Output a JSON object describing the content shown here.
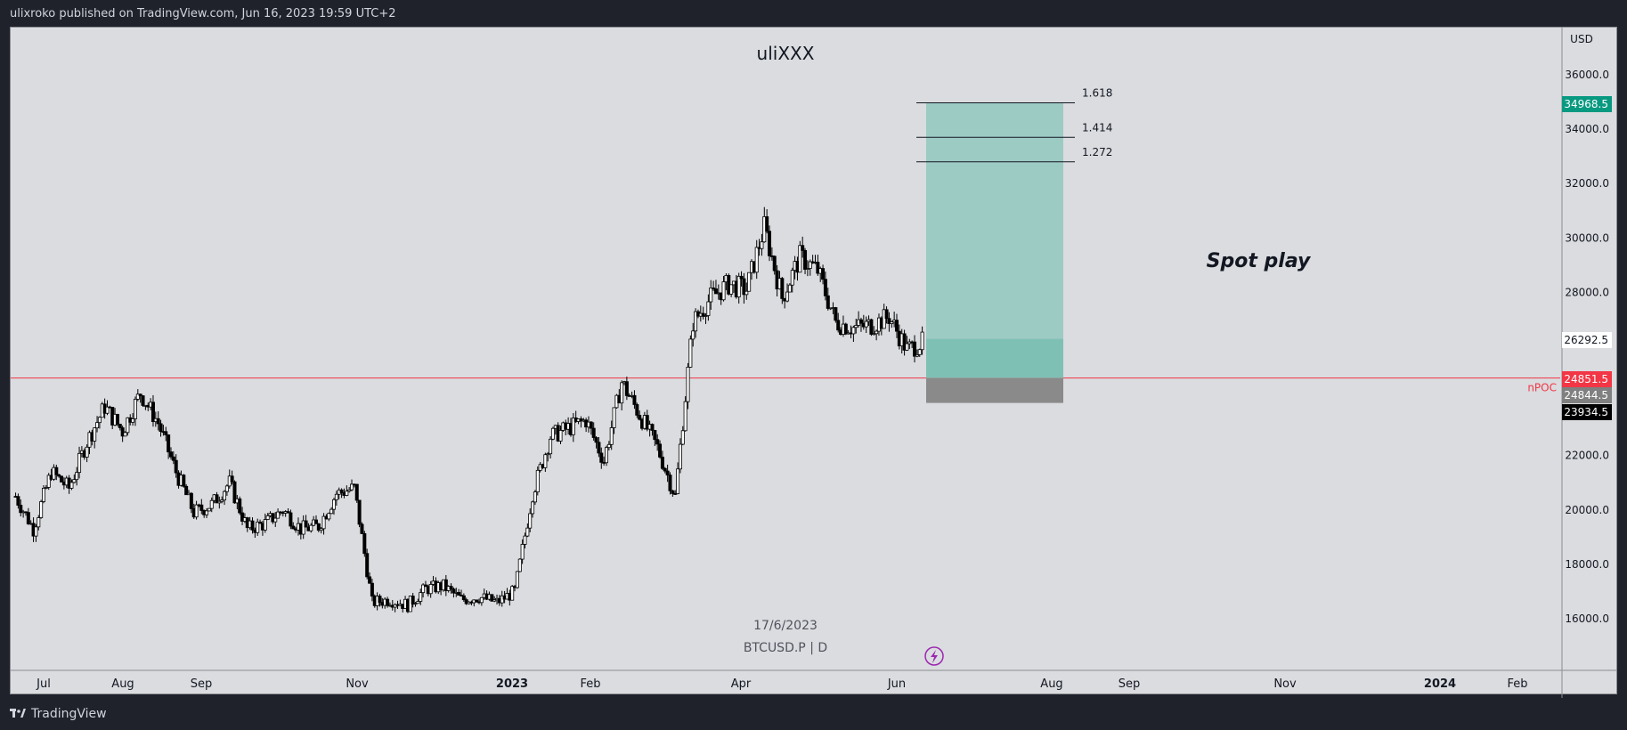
{
  "header": {
    "published": "ulixroko published on TradingView.com, Jun 16, 2023 19:59 UTC+2"
  },
  "footer": {
    "brand": "TradingView"
  },
  "chart_data": {
    "type": "candlestick",
    "title": "uliXXX",
    "symbol_info": "BTCUSD.P | D",
    "date_label": "17/6/2023",
    "annotation": "Spot play",
    "currency": "USD",
    "price_axis_ticks": [
      "36000.0",
      "34000.0",
      "32000.0",
      "30000.0",
      "28000.0",
      "22000.0",
      "20000.0",
      "18000.0",
      "16000.0"
    ],
    "time_axis_ticks": [
      "Jul",
      "Aug",
      "Sep",
      "Nov",
      "2023",
      "Feb",
      "Apr",
      "Jun",
      "Aug",
      "Sep",
      "Nov",
      "2024",
      "Feb"
    ],
    "ylim": [
      14200,
      37400
    ],
    "price_labels": [
      {
        "value": "34968.5",
        "color": "#089981",
        "text_color": "#ffffff"
      },
      {
        "value": "26292.5",
        "color": "#ffffff",
        "text_color": "#131722"
      },
      {
        "value": "24851.5",
        "color": "#f23645",
        "text_color": "#ffffff"
      },
      {
        "value": "24844.5",
        "color": "#808080",
        "text_color": "#ffffff"
      },
      {
        "value": "23934.5",
        "color": "#000000",
        "text_color": "#ffffff"
      }
    ],
    "npoc": {
      "label": "nPOC",
      "price": 24851.5,
      "color": "#f23645"
    },
    "position": {
      "entry": 24844.5,
      "stop": 23934.5,
      "target": 34968.5,
      "current": 26292.5,
      "profit_color": "#9ccbc4",
      "profit_filled_color": "#7fc0b5",
      "loss_color": "#8a8a8a"
    },
    "fib_levels": [
      {
        "label": "1.618",
        "price": 34968.5
      },
      {
        "label": "1.414",
        "price": 33700
      },
      {
        "label": "1.272",
        "price": 32800
      }
    ],
    "series": [
      {
        "date": "2022-06-20",
        "close": 20500
      },
      {
        "date": "2022-06-27",
        "close": 19300
      },
      {
        "date": "2022-07-04",
        "close": 21400
      },
      {
        "date": "2022-07-11",
        "close": 20800
      },
      {
        "date": "2022-07-18",
        "close": 22500
      },
      {
        "date": "2022-07-25",
        "close": 23800
      },
      {
        "date": "2022-08-01",
        "close": 22900
      },
      {
        "date": "2022-08-08",
        "close": 24300
      },
      {
        "date": "2022-08-15",
        "close": 23200
      },
      {
        "date": "2022-08-22",
        "close": 21400
      },
      {
        "date": "2022-08-29",
        "close": 19900
      },
      {
        "date": "2022-09-05",
        "close": 20200
      },
      {
        "date": "2022-09-12",
        "close": 21000
      },
      {
        "date": "2022-09-19",
        "close": 19300
      },
      {
        "date": "2022-09-26",
        "close": 19500
      },
      {
        "date": "2022-10-03",
        "close": 20000
      },
      {
        "date": "2022-10-10",
        "close": 19300
      },
      {
        "date": "2022-10-17",
        "close": 19400
      },
      {
        "date": "2022-10-24",
        "close": 20600
      },
      {
        "date": "2022-10-31",
        "close": 20800
      },
      {
        "date": "2022-11-07",
        "close": 16600
      },
      {
        "date": "2022-11-14",
        "close": 16700
      },
      {
        "date": "2022-11-21",
        "close": 16500
      },
      {
        "date": "2022-11-28",
        "close": 17100
      },
      {
        "date": "2022-12-05",
        "close": 17200
      },
      {
        "date": "2022-12-12",
        "close": 16700
      },
      {
        "date": "2022-12-19",
        "close": 16800
      },
      {
        "date": "2022-12-26",
        "close": 16600
      },
      {
        "date": "2023-01-02",
        "close": 17000
      },
      {
        "date": "2023-01-09",
        "close": 20600
      },
      {
        "date": "2023-01-16",
        "close": 22700
      },
      {
        "date": "2023-01-23",
        "close": 23000
      },
      {
        "date": "2023-01-30",
        "close": 23300
      },
      {
        "date": "2023-02-06",
        "close": 21800
      },
      {
        "date": "2023-02-13",
        "close": 24700
      },
      {
        "date": "2023-02-20",
        "close": 23500
      },
      {
        "date": "2023-02-27",
        "close": 22300
      },
      {
        "date": "2023-03-06",
        "close": 20500
      },
      {
        "date": "2023-03-13",
        "close": 26900
      },
      {
        "date": "2023-03-20",
        "close": 27800
      },
      {
        "date": "2023-03-27",
        "close": 28300
      },
      {
        "date": "2023-04-03",
        "close": 28100
      },
      {
        "date": "2023-04-10",
        "close": 30400
      },
      {
        "date": "2023-04-17",
        "close": 27800
      },
      {
        "date": "2023-04-24",
        "close": 29300
      },
      {
        "date": "2023-05-01",
        "close": 28800
      },
      {
        "date": "2023-05-08",
        "close": 26900
      },
      {
        "date": "2023-05-15",
        "close": 26700
      },
      {
        "date": "2023-05-22",
        "close": 26800
      },
      {
        "date": "2023-05-29",
        "close": 27100
      },
      {
        "date": "2023-06-05",
        "close": 25900
      },
      {
        "date": "2023-06-12",
        "close": 26200
      }
    ]
  }
}
